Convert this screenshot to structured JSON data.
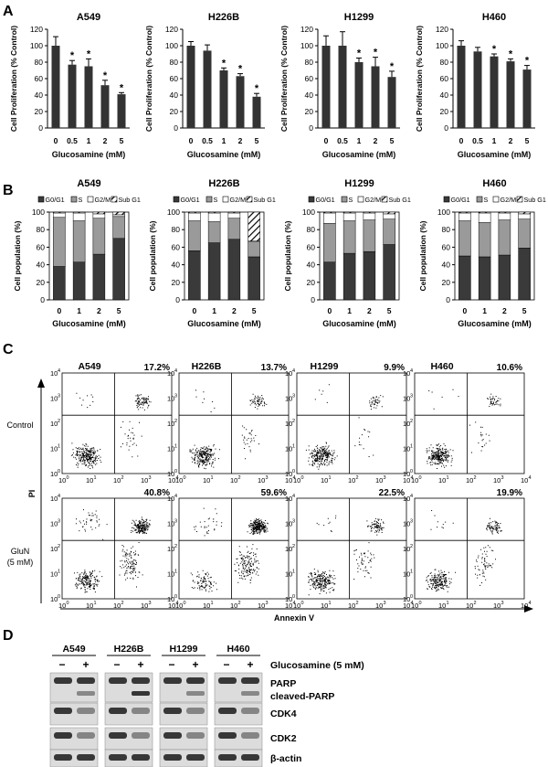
{
  "panel_labels": [
    "A",
    "B",
    "C",
    "D"
  ],
  "chart_data": [
    {
      "panel": "A",
      "type": "bar",
      "title": "A549",
      "xlabel": "Glucosamine (mM)",
      "ylabel": "Cell Proliferation (% Control)",
      "categories": [
        "0",
        "0.5",
        "1",
        "2",
        "5"
      ],
      "values": [
        100,
        77,
        75,
        52,
        41
      ],
      "errors": [
        11,
        5,
        9,
        6,
        2
      ],
      "significant": [
        false,
        true,
        true,
        true,
        true
      ],
      "ylim": [
        0,
        120
      ],
      "yticks": [
        "0",
        "20",
        "40",
        "60",
        "80",
        "100",
        "120"
      ]
    },
    {
      "panel": "A",
      "type": "bar",
      "title": "H226B",
      "xlabel": "Glucosamine (mM)",
      "ylabel": "Cell Proliferation (% Control)",
      "categories": [
        "0",
        "0.5",
        "1",
        "2",
        "5"
      ],
      "values": [
        100,
        94,
        70,
        63,
        38
      ],
      "errors": [
        5,
        7,
        3,
        3,
        4
      ],
      "significant": [
        false,
        false,
        true,
        true,
        true
      ],
      "ylim": [
        0,
        120
      ],
      "yticks": [
        "0",
        "20",
        "40",
        "60",
        "80",
        "100",
        "120"
      ]
    },
    {
      "panel": "A",
      "type": "bar",
      "title": "H1299",
      "xlabel": "Glucosamine (mM)",
      "ylabel": "Cell Proliferation (% Control)",
      "categories": [
        "0",
        "0.5",
        "1",
        "2",
        "5"
      ],
      "values": [
        100,
        100,
        80,
        75,
        62
      ],
      "errors": [
        12,
        17,
        5,
        11,
        7
      ],
      "significant": [
        false,
        false,
        true,
        true,
        true
      ],
      "ylim": [
        0,
        120
      ],
      "yticks": [
        "0",
        "20",
        "40",
        "60",
        "80",
        "100",
        "120"
      ]
    },
    {
      "panel": "A",
      "type": "bar",
      "title": "H460",
      "xlabel": "Glucosamine (mM)",
      "ylabel": "Cell Proliferation (% Control)",
      "categories": [
        "0",
        "0.5",
        "1",
        "2",
        "5"
      ],
      "values": [
        100,
        93,
        87,
        81,
        71
      ],
      "errors": [
        6,
        5,
        3,
        3,
        5
      ],
      "significant": [
        false,
        false,
        true,
        true,
        true
      ],
      "ylim": [
        0,
        120
      ],
      "yticks": [
        "0",
        "20",
        "40",
        "60",
        "80",
        "100",
        "120"
      ]
    },
    {
      "panel": "B",
      "type": "bar",
      "stacked": true,
      "title": "A549",
      "xlabel": "Glucosamine (mM)",
      "ylabel": "Cell population (%)",
      "categories": [
        "0",
        "1",
        "2",
        "5"
      ],
      "ylim": [
        0,
        100
      ],
      "yticks": [
        "0",
        "20",
        "40",
        "60",
        "80",
        "100"
      ],
      "legend": [
        "G0/G1",
        "S",
        "G2/M",
        "Sub G1"
      ],
      "series": [
        {
          "name": "G0/G1",
          "values": [
            38,
            43,
            52,
            70
          ]
        },
        {
          "name": "S",
          "values": [
            56,
            47,
            41,
            25
          ]
        },
        {
          "name": "G2/M",
          "values": [
            5,
            9,
            5,
            2
          ]
        },
        {
          "name": "Sub G1",
          "values": [
            1,
            1,
            2,
            3
          ]
        }
      ]
    },
    {
      "panel": "B",
      "type": "bar",
      "stacked": true,
      "title": "H226B",
      "xlabel": "Glucosamine (mM)",
      "ylabel": "Cell population (%)",
      "categories": [
        "0",
        "1",
        "2",
        "5"
      ],
      "ylim": [
        0,
        100
      ],
      "yticks": [
        "0",
        "20",
        "40",
        "60",
        "80",
        "100"
      ],
      "legend": [
        "G0/G1",
        "S",
        "G2/M",
        "Sub G1"
      ],
      "series": [
        {
          "name": "G0/G1",
          "values": [
            56,
            65,
            69,
            49
          ]
        },
        {
          "name": "S",
          "values": [
            34,
            24,
            24,
            17
          ]
        },
        {
          "name": "G2/M",
          "values": [
            9,
            10,
            6,
            1
          ]
        },
        {
          "name": "Sub G1",
          "values": [
            1,
            1,
            1,
            33
          ]
        }
      ]
    },
    {
      "panel": "B",
      "type": "bar",
      "stacked": true,
      "title": "H1299",
      "xlabel": "Glucosamine (mM)",
      "ylabel": "Cell population (%)",
      "categories": [
        "0",
        "1",
        "2",
        "5"
      ],
      "ylim": [
        0,
        100
      ],
      "yticks": [
        "0",
        "20",
        "40",
        "60",
        "80",
        "100"
      ],
      "legend": [
        "G0/G1",
        "S",
        "G2/M",
        "Sub G1"
      ],
      "series": [
        {
          "name": "G0/G1",
          "values": [
            43,
            53,
            55,
            63
          ]
        },
        {
          "name": "S",
          "values": [
            44,
            37,
            36,
            29
          ]
        },
        {
          "name": "G2/M",
          "values": [
            12,
            9,
            8,
            6
          ]
        },
        {
          "name": "Sub G1",
          "values": [
            1,
            1,
            1,
            2
          ]
        }
      ]
    },
    {
      "panel": "B",
      "type": "bar",
      "stacked": true,
      "title": "H460",
      "xlabel": "Glucosamine (mM)",
      "ylabel": "Cell population (%)",
      "categories": [
        "0",
        "1",
        "2",
        "5"
      ],
      "ylim": [
        0,
        100
      ],
      "yticks": [
        "0",
        "20",
        "40",
        "60",
        "80",
        "100"
      ],
      "legend": [
        "G0/G1",
        "S",
        "G2/M",
        "Sub G1"
      ],
      "series": [
        {
          "name": "G0/G1",
          "values": [
            50,
            49,
            51,
            59
          ]
        },
        {
          "name": "S",
          "values": [
            40,
            39,
            40,
            33
          ]
        },
        {
          "name": "G2/M",
          "values": [
            9,
            11,
            8,
            6
          ]
        },
        {
          "name": "Sub G1",
          "values": [
            1,
            1,
            1,
            2
          ]
        }
      ]
    },
    {
      "panel": "C",
      "type": "scatter",
      "description_free": true,
      "xlabel": "Annexin V",
      "ylabel": "PI",
      "row_labels": [
        "Control",
        "GluN\n(5 mM)"
      ],
      "columns": [
        "A549",
        "H226B",
        "H1299",
        "H460"
      ],
      "tick_labels": [
        "10",
        "10",
        "10",
        "10",
        "10"
      ],
      "tick_exponents": [
        "0",
        "1",
        "2",
        "3",
        "4"
      ],
      "apoptosis_percent": {
        "Control": [
          "17.2%",
          "13.7%",
          "9.9%",
          "10.6%"
        ],
        "GluN (5 mM)": [
          "40.8%",
          "59.6%",
          "22.5%",
          "19.9%"
        ]
      }
    },
    {
      "panel": "D",
      "type": "table",
      "columns": [
        "A549",
        "H226B",
        "H1299",
        "H460"
      ],
      "lane_signs": [
        "−",
        "+"
      ],
      "treatment_label": "Glucosamine (5 mM)",
      "bands": [
        "PARP",
        "cleaved-PARP",
        "CDK4",
        "CDK2",
        "β-actin"
      ]
    }
  ],
  "colors": {
    "g0g1": "#3a3a3a",
    "s": "#9a9a9a",
    "g2m": "#ffffff",
    "bar": "#333333"
  }
}
